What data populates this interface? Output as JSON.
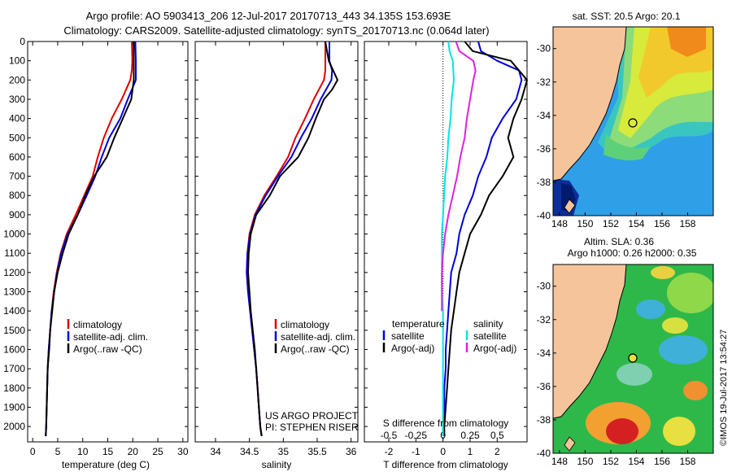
{
  "header": {
    "line1": "Argo profile: AO 5903413_206 12-Jul-2017 20170713_443 34.135S 153.693E",
    "line2": "Climatology: CARS2009. Satellite-adjusted climatology: synTS_20170713.nc (0.064d later)"
  },
  "colors": {
    "climatology": "#e00000",
    "satellite": "#0000dd",
    "argo": "#000000",
    "salinity_satellite": "#00e5e5",
    "salinity_argo": "#e020e0"
  },
  "chart_data": [
    {
      "type": "line",
      "id": "temperature",
      "xlabel": "temperature (deg C)",
      "ylabel": "",
      "xlim": [
        -1,
        31
      ],
      "ylim": [
        2080,
        0
      ],
      "xticks": [
        "0",
        "5",
        "10",
        "15",
        "20",
        "25",
        "30"
      ],
      "yticks": [
        "0",
        "100",
        "200",
        "300",
        "400",
        "500",
        "600",
        "700",
        "800",
        "900",
        "1000",
        "1100",
        "1200",
        "1300",
        "1400",
        "1500",
        "1600",
        "1700",
        "1800",
        "1900",
        "2000"
      ],
      "legend": [
        "climatology",
        "satellite-adj. clim.",
        "Argo(..raw -QC)"
      ],
      "series": [
        {
          "name": "climatology",
          "color_key": "climatology",
          "points": [
            [
              19.8,
              0
            ],
            [
              19.9,
              100
            ],
            [
              19.8,
              150
            ],
            [
              19.5,
              200
            ],
            [
              17.8,
              300
            ],
            [
              15.8,
              400
            ],
            [
              14.2,
              500
            ],
            [
              13.0,
              600
            ],
            [
              12.0,
              700
            ],
            [
              10.3,
              800
            ],
            [
              8.6,
              900
            ],
            [
              6.8,
              1000
            ],
            [
              5.6,
              1100
            ],
            [
              4.8,
              1200
            ],
            [
              4.2,
              1300
            ],
            [
              3.8,
              1400
            ],
            [
              3.5,
              1500
            ],
            [
              3.2,
              1600
            ],
            [
              3.0,
              1700
            ],
            [
              2.9,
              1800
            ],
            [
              2.8,
              1900
            ],
            [
              2.7,
              2000
            ],
            [
              2.6,
              2050
            ]
          ]
        },
        {
          "name": "satellite-adj. clim.",
          "color_key": "satellite",
          "points": [
            [
              20.5,
              0
            ],
            [
              20.6,
              100
            ],
            [
              20.6,
              150
            ],
            [
              20.6,
              200
            ],
            [
              19.0,
              300
            ],
            [
              17.5,
              400
            ],
            [
              15.3,
              500
            ],
            [
              13.8,
              600
            ],
            [
              12.5,
              700
            ],
            [
              10.8,
              800
            ],
            [
              9.0,
              900
            ],
            [
              7.0,
              1000
            ],
            [
              5.7,
              1100
            ],
            [
              4.9,
              1200
            ],
            [
              4.3,
              1300
            ],
            [
              3.8,
              1400
            ],
            [
              3.5,
              1500
            ],
            [
              3.2,
              1600
            ],
            [
              3.0,
              1700
            ],
            [
              2.9,
              1800
            ],
            [
              2.8,
              1900
            ],
            [
              2.7,
              2000
            ],
            [
              2.6,
              2050
            ]
          ]
        },
        {
          "name": "Argo(..raw -QC)",
          "color_key": "argo",
          "points": [
            [
              20.2,
              0
            ],
            [
              20.2,
              100
            ],
            [
              20.2,
              150
            ],
            [
              20.2,
              200
            ],
            [
              19.7,
              300
            ],
            [
              18.0,
              400
            ],
            [
              16.3,
              500
            ],
            [
              14.8,
              600
            ],
            [
              12.3,
              700
            ],
            [
              10.5,
              800
            ],
            [
              9.0,
              900
            ],
            [
              7.2,
              1000
            ],
            [
              6.0,
              1100
            ],
            [
              5.0,
              1200
            ],
            [
              4.3,
              1300
            ],
            [
              3.9,
              1400
            ],
            [
              3.5,
              1500
            ],
            [
              3.3,
              1600
            ],
            [
              3.0,
              1700
            ],
            [
              2.9,
              1800
            ],
            [
              2.8,
              1900
            ],
            [
              2.7,
              2000
            ],
            [
              2.6,
              2050
            ]
          ]
        }
      ]
    },
    {
      "type": "line",
      "id": "salinity",
      "xlabel": "salinity",
      "ylabel": "",
      "xlim": [
        33.7,
        36.1
      ],
      "ylim": [
        2080,
        0
      ],
      "xticks": [
        "34",
        "34.5",
        "35",
        "35.5",
        "36"
      ],
      "legend": [
        "climatology",
        "satellite-adj. clim.",
        "Argo(..raw -QC)"
      ],
      "series": [
        {
          "name": "climatology",
          "color_key": "climatology",
          "points": [
            [
              35.62,
              0
            ],
            [
              35.62,
              100
            ],
            [
              35.62,
              150
            ],
            [
              35.6,
              200
            ],
            [
              35.45,
              300
            ],
            [
              35.32,
              400
            ],
            [
              35.18,
              500
            ],
            [
              35.07,
              600
            ],
            [
              34.9,
              700
            ],
            [
              34.72,
              800
            ],
            [
              34.58,
              900
            ],
            [
              34.5,
              1000
            ],
            [
              34.47,
              1100
            ],
            [
              34.46,
              1200
            ],
            [
              34.48,
              1300
            ],
            [
              34.51,
              1400
            ],
            [
              34.54,
              1500
            ],
            [
              34.57,
              1600
            ],
            [
              34.6,
              1700
            ],
            [
              34.62,
              1800
            ],
            [
              34.64,
              1900
            ],
            [
              34.66,
              2000
            ],
            [
              34.68,
              2050
            ]
          ]
        },
        {
          "name": "satellite-adj. clim.",
          "color_key": "satellite",
          "points": [
            [
              35.68,
              0
            ],
            [
              35.68,
              100
            ],
            [
              35.72,
              150
            ],
            [
              35.71,
              200
            ],
            [
              35.55,
              300
            ],
            [
              35.42,
              400
            ],
            [
              35.26,
              500
            ],
            [
              35.12,
              600
            ],
            [
              34.92,
              700
            ],
            [
              34.74,
              800
            ],
            [
              34.59,
              900
            ],
            [
              34.51,
              1000
            ],
            [
              34.47,
              1100
            ],
            [
              34.46,
              1200
            ],
            [
              34.48,
              1300
            ],
            [
              34.51,
              1400
            ],
            [
              34.54,
              1500
            ],
            [
              34.57,
              1600
            ],
            [
              34.6,
              1700
            ],
            [
              34.62,
              1800
            ],
            [
              34.64,
              1900
            ],
            [
              34.66,
              2000
            ],
            [
              34.68,
              2050
            ]
          ]
        },
        {
          "name": "Argo(..raw -QC)",
          "color_key": "argo",
          "points": [
            [
              35.62,
              0
            ],
            [
              35.67,
              100
            ],
            [
              35.8,
              200
            ],
            [
              35.72,
              250
            ],
            [
              35.6,
              300
            ],
            [
              35.48,
              400
            ],
            [
              35.37,
              500
            ],
            [
              35.22,
              600
            ],
            [
              34.95,
              700
            ],
            [
              34.8,
              800
            ],
            [
              34.6,
              900
            ],
            [
              34.52,
              1000
            ],
            [
              34.49,
              1100
            ],
            [
              34.48,
              1200
            ],
            [
              34.5,
              1300
            ],
            [
              34.52,
              1400
            ],
            [
              34.55,
              1500
            ],
            [
              34.58,
              1600
            ],
            [
              34.6,
              1700
            ],
            [
              34.62,
              1800
            ],
            [
              34.64,
              1900
            ],
            [
              34.66,
              2000
            ],
            [
              34.68,
              2050
            ]
          ]
        }
      ]
    },
    {
      "type": "line",
      "id": "differences",
      "xlabel": "T difference from climatology",
      "xlabel_top": "S difference from climatology",
      "xlim": [
        -2.9,
        3.1
      ],
      "ylim": [
        2080,
        0
      ],
      "xticks": [
        "-2",
        "-1",
        "0",
        "1",
        "2"
      ],
      "xticks_s": [
        "-0.5",
        "-0.25",
        "0",
        "0.25",
        "0.5"
      ],
      "legend_headers": [
        "temperature",
        "salinity"
      ],
      "legend": [
        "satellite",
        "Argo(-adj)",
        "satellite",
        "Argo(-adj)"
      ],
      "series": [
        {
          "name": "temperature satellite",
          "color_key": "satellite",
          "points": [
            [
              1.3,
              0
            ],
            [
              1.4,
              50
            ],
            [
              2.0,
              100
            ],
            [
              2.8,
              150
            ],
            [
              2.9,
              200
            ],
            [
              2.7,
              300
            ],
            [
              2.2,
              400
            ],
            [
              1.8,
              500
            ],
            [
              1.6,
              600
            ],
            [
              1.3,
              700
            ],
            [
              1.1,
              800
            ],
            [
              0.8,
              900
            ],
            [
              0.6,
              1000
            ],
            [
              0.5,
              1100
            ],
            [
              0.3,
              1200
            ],
            [
              0.25,
              1300
            ],
            [
              0.2,
              1400
            ],
            [
              0.15,
              1500
            ],
            [
              0.1,
              1600
            ],
            [
              0.1,
              1700
            ],
            [
              0.05,
              1800
            ],
            [
              0.05,
              1900
            ],
            [
              0.0,
              2000
            ],
            [
              0.0,
              2050
            ]
          ]
        },
        {
          "name": "temperature Argo(-adj)",
          "color_key": "argo",
          "points": [
            [
              0.8,
              0
            ],
            [
              1.1,
              50
            ],
            [
              2.5,
              100
            ],
            [
              3.1,
              200
            ],
            [
              2.9,
              300
            ],
            [
              2.6,
              400
            ],
            [
              2.4,
              500
            ],
            [
              2.6,
              600
            ],
            [
              2.2,
              700
            ],
            [
              1.7,
              800
            ],
            [
              1.4,
              900
            ],
            [
              1.0,
              1000
            ],
            [
              0.8,
              1100
            ],
            [
              0.6,
              1200
            ],
            [
              0.5,
              1300
            ],
            [
              0.4,
              1400
            ],
            [
              0.3,
              1500
            ],
            [
              0.25,
              1600
            ],
            [
              0.2,
              1700
            ],
            [
              0.15,
              1800
            ],
            [
              0.1,
              1900
            ],
            [
              0.05,
              2000
            ],
            [
              0.05,
              2050
            ]
          ]
        },
        {
          "name": "salinity satellite",
          "color_key": "salinity_satellite",
          "points": [
            [
              0.05,
              0
            ],
            [
              0.06,
              50
            ],
            [
              0.09,
              100
            ],
            [
              0.1,
              200
            ],
            [
              0.08,
              300
            ],
            [
              0.07,
              400
            ],
            [
              0.05,
              500
            ],
            [
              0.04,
              600
            ],
            [
              0.02,
              700
            ],
            [
              0.01,
              800
            ],
            [
              0.0,
              900
            ],
            [
              -0.01,
              1000
            ],
            [
              -0.01,
              1100
            ],
            [
              -0.01,
              1200
            ],
            [
              -0.01,
              1300
            ],
            [
              0.0,
              1400
            ],
            [
              0.0,
              1500
            ],
            [
              0.0,
              1600
            ],
            [
              0.0,
              1700
            ],
            [
              0.0,
              1800
            ],
            [
              0.0,
              1900
            ],
            [
              0.0,
              2000
            ],
            [
              0.0,
              2050
            ]
          ]
        },
        {
          "name": "salinity Argo(-adj)",
          "color_key": "salinity_argo",
          "points": [
            [
              0.12,
              0
            ],
            [
              0.15,
              50
            ],
            [
              0.28,
              100
            ],
            [
              0.3,
              150
            ],
            [
              0.28,
              200
            ],
            [
              0.25,
              300
            ],
            [
              0.22,
              400
            ],
            [
              0.2,
              500
            ],
            [
              0.16,
              600
            ],
            [
              0.13,
              700
            ],
            [
              0.09,
              800
            ],
            [
              0.05,
              900
            ],
            [
              0.02,
              1000
            ],
            [
              0.0,
              1100
            ],
            [
              -0.01,
              1200
            ],
            [
              -0.01,
              1300
            ],
            [
              -0.01,
              1400
            ]
          ]
        }
      ]
    }
  ],
  "maps": [
    {
      "id": "sst-map",
      "title": "sat. SST: 20.5 Argo: 20.1",
      "title2": "",
      "lon_range": [
        147.5,
        160
      ],
      "lat_range": [
        -40,
        -28.7
      ],
      "xticks": [
        "148",
        "150",
        "152",
        "154",
        "156",
        "158"
      ],
      "yticks": [
        "-30",
        "-32",
        "-34",
        "-36",
        "-38",
        "-40"
      ],
      "float_position": {
        "lon": 153.693,
        "lat": -34.135
      }
    },
    {
      "id": "sla-map",
      "title": "Altim. SLA: 0.36",
      "title2": "Argo h1000: 0.26 h2000: 0.35",
      "lon_range": [
        147.5,
        160
      ],
      "lat_range": [
        -40,
        -28.7
      ],
      "xticks": [
        "148",
        "150",
        "152",
        "154",
        "156",
        "158"
      ],
      "yticks": [
        "-30",
        "-32",
        "-34",
        "-36",
        "-38",
        "-40"
      ],
      "float_position": {
        "lon": 153.693,
        "lat": -34.135
      }
    }
  ],
  "footer": {
    "project": "US ARGO PROJECT",
    "pi": "PI: STEPHEN RISER",
    "stamp": "©IMOS 19-Jul-2017 13:54:27"
  }
}
